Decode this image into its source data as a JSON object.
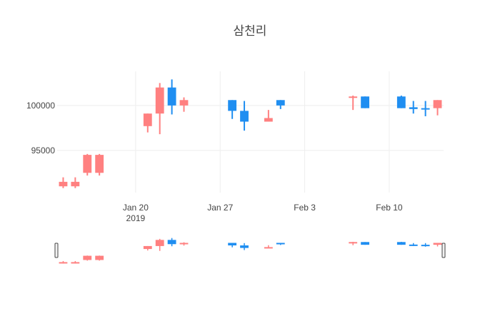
{
  "chart_data": {
    "type": "candlestick",
    "title": "삼천리",
    "xlabel": "",
    "ylabel": "",
    "ylim": [
      90300,
      103800
    ],
    "x_range": [
      "2019-01-13T12:00",
      "2019-02-14T12:00"
    ],
    "y_ticks": [
      {
        "value": 95000,
        "label": "95000"
      },
      {
        "value": 100000,
        "label": "100000"
      }
    ],
    "x_ticks": [
      {
        "date": "2019-01-20",
        "label": "Jan 20",
        "sublabel": "2019"
      },
      {
        "date": "2019-01-27",
        "label": "Jan 27",
        "sublabel": ""
      },
      {
        "date": "2019-02-03",
        "label": "Feb 3",
        "sublabel": ""
      },
      {
        "date": "2019-02-10",
        "label": "Feb 10",
        "sublabel": ""
      }
    ],
    "increasing_color": "#ff8080",
    "decreasing_color": "#1f8ef1",
    "grid": true,
    "rangeslider": true,
    "candles": [
      {
        "date": "2019-01-14",
        "open": 91000,
        "high": 92000,
        "low": 90800,
        "close": 91500
      },
      {
        "date": "2019-01-15",
        "open": 91000,
        "high": 92000,
        "low": 90800,
        "close": 91500
      },
      {
        "date": "2019-01-16",
        "open": 92500,
        "high": 94600,
        "low": 92200,
        "close": 94500
      },
      {
        "date": "2019-01-17",
        "open": 92500,
        "high": 94600,
        "low": 92200,
        "close": 94500
      },
      {
        "date": "2019-01-21",
        "open": 97700,
        "high": 99100,
        "low": 97000,
        "close": 99100
      },
      {
        "date": "2019-01-22",
        "open": 99100,
        "high": 102500,
        "low": 96800,
        "close": 102000
      },
      {
        "date": "2019-01-23",
        "open": 102000,
        "high": 102900,
        "low": 99000,
        "close": 100000
      },
      {
        "date": "2019-01-24",
        "open": 100000,
        "high": 100900,
        "low": 99300,
        "close": 100600
      },
      {
        "date": "2019-01-28",
        "open": 100600,
        "high": 100600,
        "low": 98500,
        "close": 99400
      },
      {
        "date": "2019-01-29",
        "open": 99400,
        "high": 100500,
        "low": 97200,
        "close": 98200
      },
      {
        "date": "2019-01-31",
        "open": 98200,
        "high": 99500,
        "low": 98200,
        "close": 98600
      },
      {
        "date": "2019-02-01",
        "open": 100600,
        "high": 100600,
        "low": 99600,
        "close": 100000
      },
      {
        "date": "2019-02-07",
        "open": 100900,
        "high": 101100,
        "low": 99500,
        "close": 101000
      },
      {
        "date": "2019-02-08",
        "open": 101000,
        "high": 101000,
        "low": 99700,
        "close": 99700
      },
      {
        "date": "2019-02-11",
        "open": 101000,
        "high": 101100,
        "low": 99700,
        "close": 99700
      },
      {
        "date": "2019-02-12",
        "open": 99800,
        "high": 100500,
        "low": 99100,
        "close": 99600
      },
      {
        "date": "2019-02-13",
        "open": 99700,
        "high": 100500,
        "low": 98800,
        "close": 99600
      },
      {
        "date": "2019-02-14",
        "open": 99700,
        "high": 100600,
        "low": 98900,
        "close": 100600
      }
    ]
  }
}
